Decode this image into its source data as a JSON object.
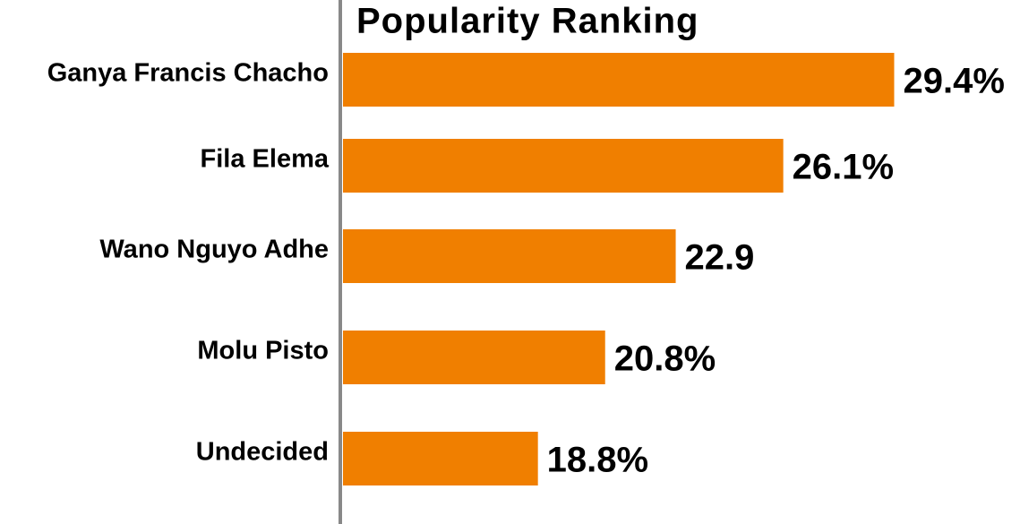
{
  "chart_data": {
    "type": "bar",
    "orientation": "horizontal",
    "title": "Popularity Ranking",
    "categories": [
      "Ganya Francis Chacho",
      "Fila Elema",
      "Wano Nguyo Adhe",
      "Molu Pisto",
      "Undecided"
    ],
    "values": [
      29.4,
      26.1,
      22.9,
      20.8,
      18.8
    ],
    "value_labels": [
      "29.4%",
      "26.1%",
      "22.9",
      "20.8%",
      "18.8%"
    ],
    "color": "#f07f00",
    "xlim": [
      13,
      29.6
    ]
  }
}
